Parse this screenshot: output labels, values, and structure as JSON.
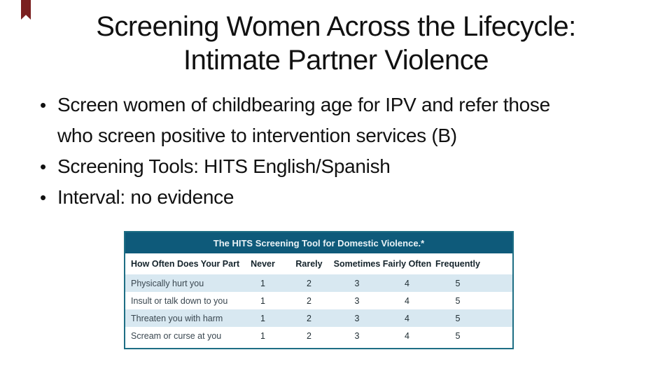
{
  "colors": {
    "text": "#111111",
    "ribbon_red": "#7a1f1f",
    "table_header_bg": "#0e5a7a",
    "table_border": "#1e6e84",
    "row_stripe": "#d8e8f1"
  },
  "slide": {
    "title": "Screening Women Across the Lifecycle:\nIntimate Partner Violence",
    "bullets": [
      "Screen women of childbearing age for IPV and refer those\nwho screen positive to intervention services (B)",
      "Screening Tools: HITS English/Spanish",
      "Interval: no evidence"
    ]
  },
  "chart_data": {
    "type": "table",
    "title": "The HITS Screening Tool for Domestic Violence.*",
    "columns": [
      "How Often Does Your Partner",
      "Never",
      "Rarely",
      "Sometimes",
      "Fairly Often",
      "Frequently"
    ],
    "rows": [
      {
        "label": "Physically hurt you",
        "values": [
          "1",
          "2",
          "3",
          "4",
          "5"
        ]
      },
      {
        "label": "Insult or talk down to you",
        "values": [
          "1",
          "2",
          "3",
          "4",
          "5"
        ]
      },
      {
        "label": "Threaten you with harm",
        "values": [
          "1",
          "2",
          "3",
          "4",
          "5"
        ]
      },
      {
        "label": "Scream or curse at you",
        "values": [
          "1",
          "2",
          "3",
          "4",
          "5"
        ]
      }
    ]
  }
}
